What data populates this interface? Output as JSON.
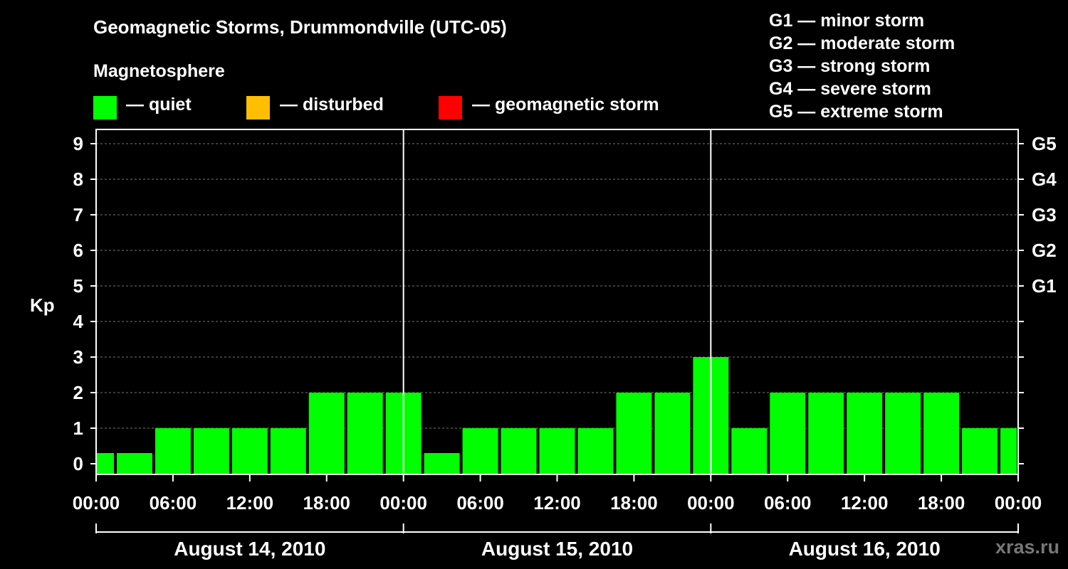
{
  "title": "Geomagnetic Storms, Drummondville (UTC-05)",
  "magnetosphere": {
    "title": "Magnetosphere",
    "legend": [
      {
        "label": "— quiet",
        "color": "#00ff00"
      },
      {
        "label": "— disturbed",
        "color": "#ffbf00"
      },
      {
        "label": "— geomagnetic storm",
        "color": "#ff0000"
      }
    ]
  },
  "g_scale": [
    "G1 — minor storm",
    "G2 — moderate storm",
    "G3 — strong storm",
    "G4 — severe storm",
    "G5 — extreme storm"
  ],
  "watermark": "xras.ru",
  "chart_data": {
    "type": "bar",
    "ylabel": "Kp",
    "ylim": [
      0,
      9
    ],
    "y_ticks": [
      0,
      1,
      2,
      3,
      4,
      5,
      6,
      7,
      8,
      9
    ],
    "right_ticks": [
      {
        "value": 5,
        "label": "G1"
      },
      {
        "value": 6,
        "label": "G2"
      },
      {
        "value": 7,
        "label": "G3"
      },
      {
        "value": 8,
        "label": "G4"
      },
      {
        "value": 9,
        "label": "G5"
      }
    ],
    "x_tick_labels": [
      "00:00",
      "06:00",
      "12:00",
      "18:00",
      "00:00",
      "06:00",
      "12:00",
      "18:00",
      "00:00",
      "06:00",
      "12:00",
      "18:00",
      "00:00"
    ],
    "days": [
      "August 14, 2010",
      "August 15, 2010",
      "August 16, 2010"
    ],
    "interval_hours": 3,
    "values": [
      0,
      0,
      1,
      1,
      1,
      1,
      2,
      2,
      2,
      0,
      1,
      1,
      1,
      1,
      2,
      2,
      3,
      1,
      2,
      2,
      2,
      2,
      2,
      1,
      1
    ],
    "colors": {
      "quiet": "#00ff00",
      "disturbed": "#ffbf00",
      "storm": "#ff0000"
    },
    "grid": true
  }
}
